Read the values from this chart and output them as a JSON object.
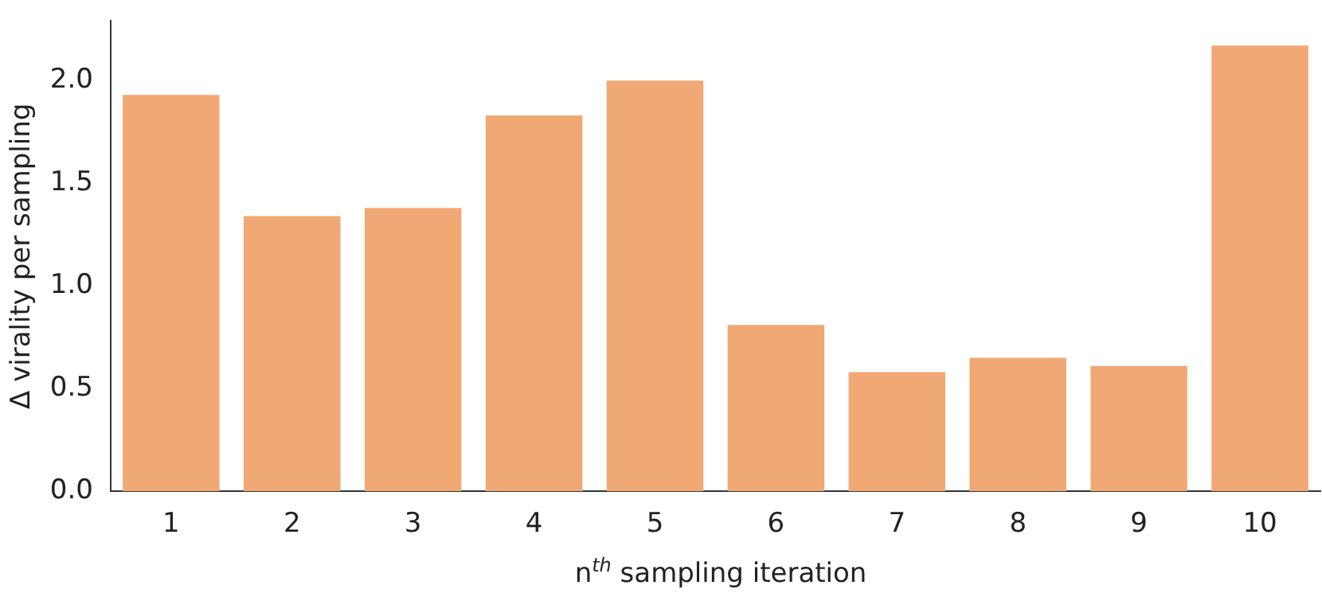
{
  "chart_data": {
    "type": "bar",
    "xlabel": "n$^{th}$ sampling iteration",
    "ylabel": "Δ virality per sampling",
    "categories": [
      "1",
      "2",
      "3",
      "4",
      "5",
      "6",
      "7",
      "8",
      "9",
      "10"
    ],
    "values": [
      1.93,
      1.34,
      1.38,
      1.83,
      2.0,
      0.81,
      0.58,
      0.65,
      0.61,
      2.17
    ],
    "color": "#f0a875",
    "ylim": [
      0,
      2.29
    ],
    "yticks": [
      {
        "value": 0,
        "label": "0.0"
      },
      0.5,
      {
        "value": 1,
        "label": "1.0"
      },
      1.5,
      {
        "value": 2,
        "label": "2.0"
      }
    ],
    "grid": false,
    "legend": false
  }
}
